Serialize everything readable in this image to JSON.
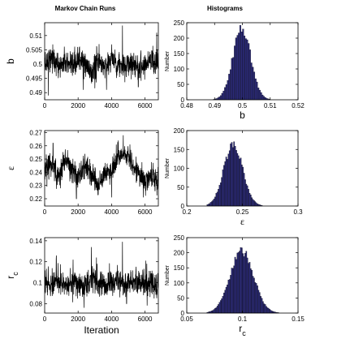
{
  "column_titles": {
    "left": "Markov Chain Runs",
    "right": "Histograms"
  },
  "colors": {
    "trace": "#000000",
    "hist_fill": "#2b2a78",
    "hist_edge": "#000000",
    "axes": "#000000"
  },
  "chart_data": [
    {
      "type": "line",
      "panel": "b trace",
      "xlabel": "",
      "ylabel": "b",
      "xlim": [
        0,
        6800
      ],
      "ylim": [
        0.4875,
        0.5145
      ],
      "xticks": [
        0,
        2000,
        4000,
        6000
      ],
      "yticks": [
        0.49,
        0.495,
        0.5,
        0.505,
        0.51
      ],
      "ytick_labels": [
        "0.49",
        "0.495",
        "0.5",
        "0.505",
        "0.51"
      ],
      "xtick_labels": [
        "0",
        "2000",
        "4000",
        "6000"
      ],
      "series": [
        {
          "x": [
            0,
            400,
            800,
            1200,
            1600,
            2000,
            2400,
            2800,
            3200,
            3600,
            4000,
            4400,
            4800,
            5200,
            5600,
            6000,
            6400,
            6800
          ],
          "values": [
            0.5,
            0.503,
            0.499,
            0.501,
            0.498,
            0.502,
            0.5,
            0.497,
            0.501,
            0.499,
            0.502,
            0.5,
            0.498,
            0.501,
            0.499,
            0.5,
            0.502,
            0.5
          ],
          "spikes": [
            [
              220,
              0.489
            ],
            [
              2300,
              0.491
            ],
            [
              3000,
              0.4915
            ],
            [
              3700,
              0.491
            ],
            [
              4650,
              0.5135
            ],
            [
              5600,
              0.492
            ],
            [
              6700,
              0.511
            ]
          ]
        }
      ]
    },
    {
      "type": "bar",
      "panel": "b histogram",
      "xlabel": "b",
      "ylabel": "Number",
      "xlim": [
        0.48,
        0.52
      ],
      "ylim": [
        0,
        250
      ],
      "xticks": [
        0.48,
        0.49,
        0.5,
        0.51,
        0.52
      ],
      "xtick_labels": [
        "0.48",
        "0.49",
        "0.5",
        "0.51",
        "0.52"
      ],
      "yticks": [
        0,
        50,
        100,
        150,
        200,
        250
      ],
      "ytick_labels": [
        "0",
        "50",
        "100",
        "150",
        "200",
        "250"
      ],
      "bins": {
        "start": 0.488,
        "end": 0.514,
        "width": 0.0005
      },
      "series": [
        {
          "mean": 0.4998,
          "sd": 0.0032,
          "peak": 232
        }
      ]
    },
    {
      "type": "line",
      "panel": "epsilon trace",
      "xlabel": "",
      "ylabel": "ε",
      "xlim": [
        0,
        6800
      ],
      "ylim": [
        0.2145,
        0.2715
      ],
      "xticks": [
        0,
        2000,
        4000,
        6000
      ],
      "yticks": [
        0.22,
        0.23,
        0.24,
        0.25,
        0.26,
        0.27
      ],
      "ytick_labels": [
        "0.22",
        "0.23",
        "0.24",
        "0.25",
        "0.26",
        "0.27"
      ],
      "xtick_labels": [
        "0",
        "2000",
        "4000",
        "6000"
      ],
      "series": [
        {
          "x": [
            0,
            400,
            800,
            1200,
            1600,
            2000,
            2400,
            2800,
            3200,
            3600,
            4000,
            4400,
            4800,
            5200,
            5600,
            6000,
            6400,
            6800
          ],
          "values": [
            0.24,
            0.247,
            0.235,
            0.25,
            0.243,
            0.236,
            0.245,
            0.24,
            0.23,
            0.238,
            0.242,
            0.25,
            0.255,
            0.248,
            0.24,
            0.232,
            0.238,
            0.232
          ],
          "spikes": [
            [
              500,
              0.262
            ],
            [
              1900,
              0.22
            ],
            [
              4000,
              0.221
            ],
            [
              4400,
              0.264
            ],
            [
              4700,
              0.268
            ],
            [
              5100,
              0.261
            ],
            [
              5900,
              0.221
            ],
            [
              6600,
              0.226
            ]
          ]
        }
      ]
    },
    {
      "type": "bar",
      "panel": "epsilon histogram",
      "xlabel": "ε",
      "ylabel": "Number",
      "xlim": [
        0.2,
        0.3
      ],
      "ylim": [
        0,
        200
      ],
      "xticks": [
        0.2,
        0.25,
        0.3
      ],
      "xtick_labels": [
        "0.2",
        "0.25",
        "0.3"
      ],
      "yticks": [
        0,
        50,
        100,
        150,
        200
      ],
      "ytick_labels": [
        "0",
        "50",
        "100",
        "150",
        "200"
      ],
      "bins": {
        "start": 0.218,
        "end": 0.27,
        "width": 0.001
      },
      "series": [
        {
          "mean": 0.2418,
          "sd": 0.0085,
          "peak": 162
        }
      ]
    },
    {
      "type": "line",
      "panel": "r_c trace",
      "xlabel": "Iteration",
      "ylabel": "r_c",
      "xlim": [
        0,
        6800
      ],
      "ylim": [
        0.071,
        0.143
      ],
      "xticks": [
        0,
        2000,
        4000,
        6000
      ],
      "yticks": [
        0.08,
        0.1,
        0.12,
        0.14
      ],
      "ytick_labels": [
        "0.08",
        "0.1",
        "0.12",
        "0.14"
      ],
      "xtick_labels": [
        "0",
        "2000",
        "4000",
        "6000"
      ],
      "series": [
        {
          "x": [
            0,
            400,
            800,
            1200,
            1600,
            2000,
            2400,
            2800,
            3200,
            3600,
            4000,
            4400,
            4800,
            5200,
            5600,
            6000,
            6400,
            6800
          ],
          "values": [
            0.1,
            0.098,
            0.102,
            0.097,
            0.101,
            0.099,
            0.096,
            0.103,
            0.1,
            0.098,
            0.102,
            0.101,
            0.099,
            0.1,
            0.098,
            0.101,
            0.099,
            0.1
          ],
          "spikes": [
            [
              700,
              0.126
            ],
            [
              1700,
              0.122
            ],
            [
              2350,
              0.076
            ],
            [
              2800,
              0.134
            ],
            [
              3100,
              0.124
            ],
            [
              4650,
              0.139
            ],
            [
              4900,
              0.08
            ],
            [
              6050,
              0.121
            ]
          ]
        }
      ]
    },
    {
      "type": "bar",
      "panel": "r_c histogram",
      "xlabel": "r_c",
      "ylabel": "Number",
      "xlim": [
        0.05,
        0.15
      ],
      "ylim": [
        0,
        250
      ],
      "xticks": [
        0.05,
        0.1,
        0.15
      ],
      "xtick_labels": [
        "0.05",
        "0.1",
        "0.15"
      ],
      "yticks": [
        0,
        50,
        100,
        150,
        200,
        250
      ],
      "ytick_labels": [
        "0",
        "50",
        "100",
        "150",
        "200",
        "250"
      ],
      "bins": {
        "start": 0.068,
        "end": 0.14,
        "width": 0.001
      },
      "series": [
        {
          "mean": 0.0995,
          "sd": 0.0105,
          "peak": 205
        }
      ]
    }
  ]
}
